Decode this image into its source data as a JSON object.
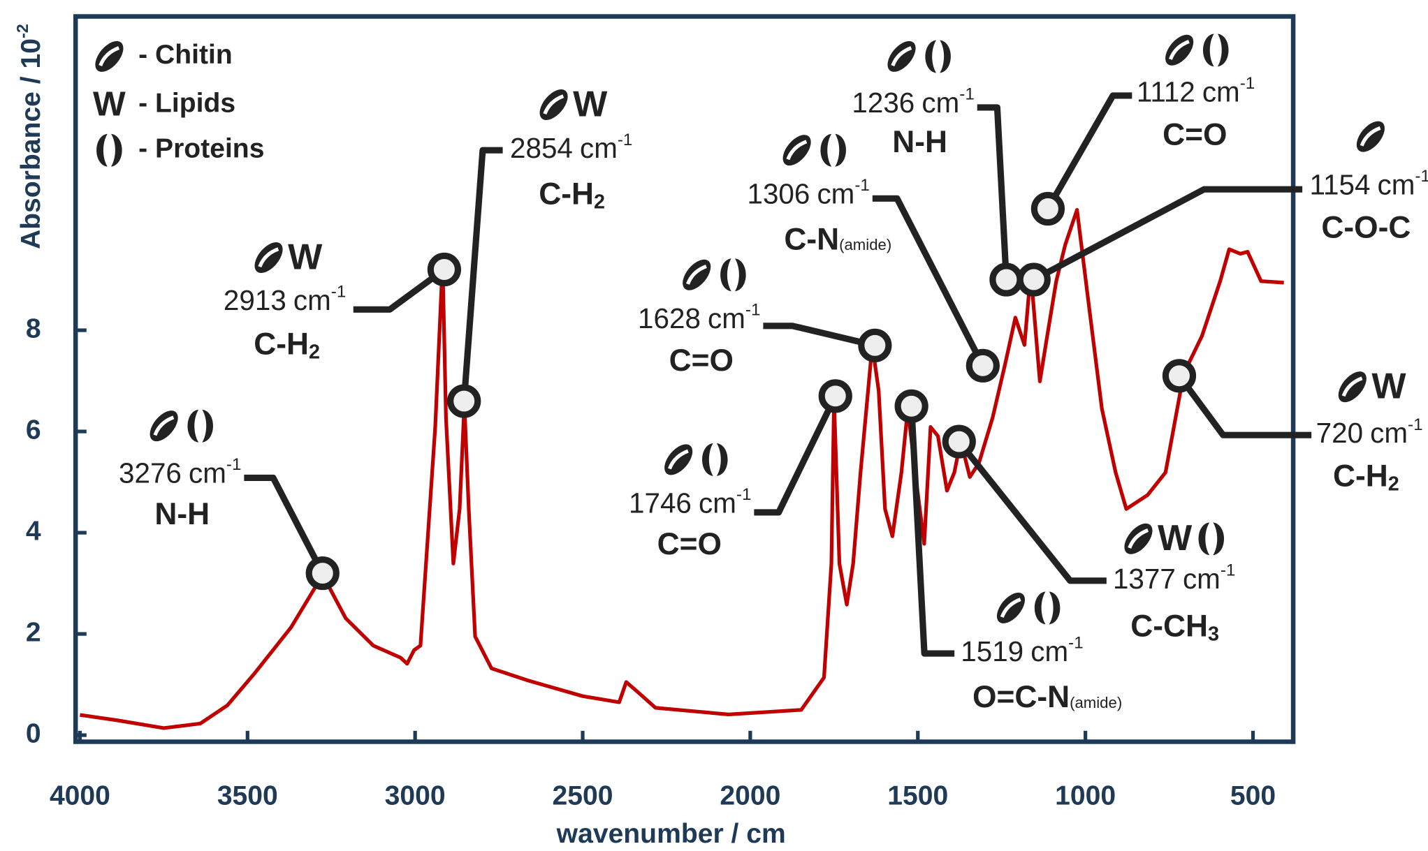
{
  "chart_data": {
    "type": "line",
    "y_label": "Absorbance / 10",
    "y_label_sup": "-2",
    "x_label": "wavenumber / cm",
    "xlim": [
      4013,
      380
    ],
    "ylim": [
      -0.13,
      14.2
    ],
    "xticks": [
      4000,
      3500,
      3000,
      2500,
      2000,
      1500,
      1000,
      500
    ],
    "yticks": [
      0,
      2,
      4,
      6,
      8
    ],
    "grid": false,
    "x": [
      4000,
      3886,
      3750,
      3641,
      3560,
      3478,
      3370,
      3288,
      3276,
      3207,
      3125,
      3043,
      3024,
      3003,
      2984,
      2962,
      2940,
      2918,
      2908,
      2886,
      2867,
      2853,
      2840,
      2821,
      2772,
      2663,
      2500,
      2391,
      2370,
      2337,
      2283,
      2065,
      1848,
      1780,
      1758,
      1750,
      1734,
      1712,
      1693,
      1671,
      1636,
      1617,
      1598,
      1576,
      1549,
      1530,
      1508,
      1481,
      1462,
      1440,
      1413,
      1391,
      1372,
      1345,
      1318,
      1277,
      1239,
      1209,
      1182,
      1163,
      1136,
      1114,
      1087,
      1060,
      1025,
      992,
      951,
      910,
      878,
      815,
      761,
      707,
      652,
      598,
      571,
      538,
      516,
      476,
      408
    ],
    "series": [
      {
        "color": "#c00000",
        "values": [
          0.4,
          0.29,
          0.14,
          0.23,
          0.59,
          1.23,
          2.13,
          3.03,
          3.17,
          2.31,
          1.77,
          1.53,
          1.41,
          1.68,
          1.77,
          3.93,
          6.09,
          9.33,
          6.27,
          3.39,
          4.47,
          6.54,
          4.47,
          1.95,
          1.32,
          1.08,
          0.77,
          0.65,
          1.05,
          0.86,
          0.54,
          0.41,
          0.5,
          1.14,
          3.39,
          6.63,
          3.39,
          2.58,
          3.39,
          5.19,
          7.71,
          6.81,
          4.47,
          3.93,
          5.19,
          6.45,
          5.19,
          3.78,
          6.09,
          5.91,
          4.83,
          5.19,
          5.82,
          5.1,
          5.37,
          6.27,
          7.35,
          8.25,
          7.71,
          9.15,
          6.99,
          7.89,
          8.97,
          9.69,
          10.38,
          8.61,
          6.45,
          5.19,
          4.47,
          4.74,
          5.19,
          7.14,
          7.89,
          8.97,
          9.6,
          9.51,
          9.55,
          8.97,
          8.94
        ]
      }
    ],
    "legend": [
      {
        "label": "- Chitin"
      },
      {
        "symbol": "W",
        "label": "- Lipids"
      },
      {
        "label": "- Proteins"
      }
    ],
    "unit": "cm",
    "unit_sup": "-1",
    "annotations": [
      {
        "x": 3276,
        "y": 3.2,
        "bond": "N-H"
      },
      {
        "x": 2913,
        "y": 9.2,
        "bond": "C-H",
        "bond_sub": "2"
      },
      {
        "x": 2854,
        "y": 6.6,
        "bond": "C-H",
        "bond_sub": "2"
      },
      {
        "x": 1746,
        "y": 6.7,
        "bond": "C=O"
      },
      {
        "x": 1628,
        "y": 7.7,
        "bond": "C=O"
      },
      {
        "x": 1519,
        "y": 6.5,
        "bond": "O=C-N",
        "bond_note": "(amide)"
      },
      {
        "x": 1377,
        "y": 5.8,
        "bond": "C-CH",
        "bond_sub": "3"
      },
      {
        "x": 1306,
        "y": 7.3,
        "bond": "C-N",
        "bond_note": "(amide)"
      },
      {
        "x": 1236,
        "y": 9.0,
        "bond": "N-H"
      },
      {
        "x": 1112,
        "y": 10.4,
        "bond": "C=O"
      },
      {
        "x": 1154,
        "y": 9.0,
        "bond": "C-O-C"
      },
      {
        "x": 720,
        "y": 7.1,
        "bond": "C-H",
        "bond_sub": "2"
      }
    ]
  }
}
